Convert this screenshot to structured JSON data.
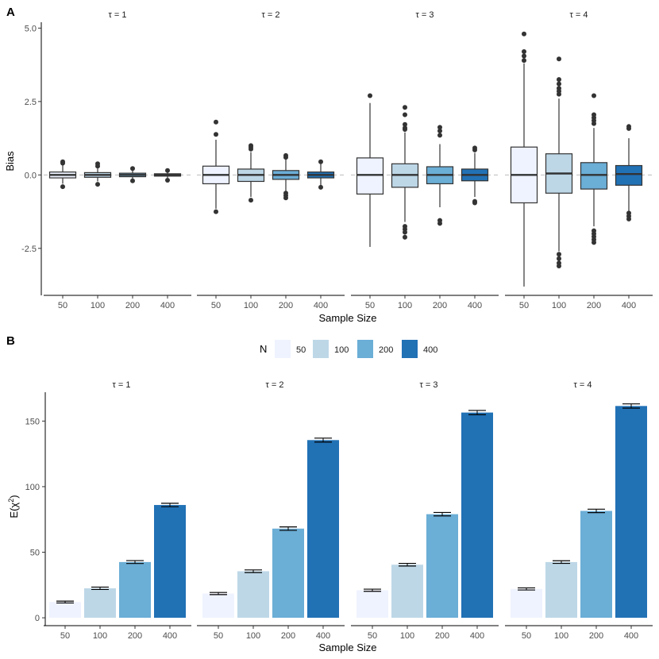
{
  "colors": {
    "n50": "#eff3ff",
    "n100": "#bdd7e7",
    "n200": "#6baed6",
    "n400": "#2171b5",
    "ink": "#333333",
    "axis": "#000000",
    "refline": "#bdbdbd"
  },
  "panel_a": {
    "label": "A",
    "xlabel": "Sample Size",
    "ylabel": "Bias",
    "facets": [
      "τ = 1",
      "τ = 2",
      "τ = 3",
      "τ = 4"
    ]
  },
  "panel_b": {
    "label": "B",
    "xlabel": "Sample Size",
    "ylabel_main": "E(χ",
    "ylabel_sup": "2",
    "ylabel_end": ")",
    "facets": [
      "τ = 1",
      "τ = 2",
      "τ = 3",
      "τ = 4"
    ]
  },
  "legend": {
    "title": "N",
    "items": [
      {
        "label": "50",
        "color": "#eff3ff"
      },
      {
        "label": "100",
        "color": "#bdd7e7"
      },
      {
        "label": "200",
        "color": "#6baed6"
      },
      {
        "label": "400",
        "color": "#2171b5"
      }
    ]
  },
  "chart_data": [
    {
      "type": "boxplot",
      "title": "A",
      "xlabel": "Sample Size",
      "ylabel": "Bias",
      "ylim": [
        -4.1,
        5.2
      ],
      "yticks": [
        5.0,
        2.5,
        0.0,
        -2.5
      ],
      "ytick_labels": [
        "5.0",
        "2.5",
        "0.0",
        "-2.5"
      ],
      "categories": [
        "50",
        "100",
        "200",
        "400"
      ],
      "reference_line": 0,
      "facets": [
        {
          "label": "τ = 1",
          "boxes": [
            {
              "n": "50",
              "q1": -0.1,
              "median": 0.0,
              "q3": 0.1,
              "lo": -0.3,
              "hi": 0.35,
              "outliers": [
                0.45,
                0.4,
                -0.4
              ]
            },
            {
              "n": "100",
              "q1": -0.08,
              "median": 0.0,
              "q3": 0.08,
              "lo": -0.22,
              "hi": 0.22,
              "outliers": [
                0.38,
                0.3,
                -0.32
              ]
            },
            {
              "n": "200",
              "q1": -0.06,
              "median": 0.0,
              "q3": 0.06,
              "lo": -0.15,
              "hi": 0.15,
              "outliers": [
                0.22,
                -0.2
              ]
            },
            {
              "n": "400",
              "q1": -0.04,
              "median": 0.0,
              "q3": 0.04,
              "lo": -0.1,
              "hi": 0.1,
              "outliers": [
                0.15,
                -0.18
              ]
            }
          ]
        },
        {
          "label": "τ = 2",
          "boxes": [
            {
              "n": "50",
              "q1": -0.3,
              "median": 0.0,
              "q3": 0.3,
              "lo": -1.15,
              "hi": 1.2,
              "outliers": [
                1.8,
                1.38,
                -1.25
              ]
            },
            {
              "n": "100",
              "q1": -0.22,
              "median": 0.0,
              "q3": 0.2,
              "lo": -0.75,
              "hi": 0.78,
              "outliers": [
                1.0,
                0.95,
                0.88,
                -0.86
              ]
            },
            {
              "n": "200",
              "q1": -0.15,
              "median": 0.0,
              "q3": 0.15,
              "lo": -0.55,
              "hi": 0.55,
              "outliers": [
                0.66,
                0.6,
                -0.62,
                -0.7,
                -0.78
              ]
            },
            {
              "n": "400",
              "q1": -0.1,
              "median": 0.0,
              "q3": 0.1,
              "lo": -0.35,
              "hi": 0.38,
              "outliers": [
                0.45,
                -0.42
              ]
            }
          ]
        },
        {
          "label": "τ = 3",
          "boxes": [
            {
              "n": "50",
              "q1": -0.65,
              "median": 0.0,
              "q3": 0.58,
              "lo": -2.45,
              "hi": 2.45,
              "outliers": [
                2.7
              ]
            },
            {
              "n": "100",
              "q1": -0.42,
              "median": 0.0,
              "q3": 0.38,
              "lo": -1.6,
              "hi": 1.45,
              "outliers": [
                2.3,
                2.05,
                1.72,
                1.6,
                1.55,
                -1.75,
                -1.85,
                -1.95,
                -2.12
              ]
            },
            {
              "n": "200",
              "q1": -0.3,
              "median": 0.0,
              "q3": 0.28,
              "lo": -1.1,
              "hi": 1.05,
              "outliers": [
                1.62,
                1.5,
                1.35,
                -1.55,
                -1.65
              ]
            },
            {
              "n": "400",
              "q1": -0.2,
              "median": 0.0,
              "q3": 0.2,
              "lo": -0.75,
              "hi": 0.75,
              "outliers": [
                0.92,
                0.85,
                -0.9,
                -0.95
              ]
            }
          ]
        },
        {
          "label": "τ = 4",
          "boxes": [
            {
              "n": "50",
              "q1": -0.95,
              "median": 0.0,
              "q3": 0.95,
              "lo": -3.8,
              "hi": 3.8,
              "outliers": [
                4.8,
                4.2,
                4.05,
                3.9
              ]
            },
            {
              "n": "100",
              "q1": -0.62,
              "median": 0.05,
              "q3": 0.72,
              "lo": -2.6,
              "hi": 2.6,
              "outliers": [
                3.95,
                3.25,
                3.1,
                2.95,
                2.85,
                2.75,
                -2.7,
                -2.85,
                -3.0,
                -3.1
              ]
            },
            {
              "n": "200",
              "q1": -0.48,
              "median": 0.0,
              "q3": 0.42,
              "lo": -1.75,
              "hi": 1.6,
              "outliers": [
                2.7,
                2.05,
                1.95,
                1.85,
                1.75,
                -1.9,
                -2.0,
                -2.1,
                -2.2,
                -2.3
              ]
            },
            {
              "n": "400",
              "q1": -0.35,
              "median": 0.03,
              "q3": 0.32,
              "lo": -1.25,
              "hi": 1.25,
              "outliers": [
                1.65,
                1.58,
                -1.3,
                -1.4,
                -1.5
              ]
            }
          ]
        }
      ]
    },
    {
      "type": "bar",
      "title": "B",
      "xlabel": "Sample Size",
      "ylabel": "E(χ²)",
      "ylim": [
        -6,
        172
      ],
      "yticks": [
        0,
        50,
        100,
        150
      ],
      "ytick_labels": [
        "0",
        "50",
        "100",
        "150"
      ],
      "categories": [
        "50",
        "100",
        "200",
        "400"
      ],
      "error_bars": true,
      "facets": [
        {
          "label": "τ = 1",
          "values": [
            12,
            22.5,
            42.5,
            86
          ],
          "errors": [
            0.7,
            0.9,
            1.1,
            1.3
          ]
        },
        {
          "label": "τ = 2",
          "values": [
            18.5,
            35.5,
            68,
            135.5
          ],
          "errors": [
            0.8,
            1.0,
            1.3,
            1.5
          ]
        },
        {
          "label": "τ = 3",
          "values": [
            21,
            40.5,
            79,
            156.5
          ],
          "errors": [
            0.8,
            1.0,
            1.3,
            1.6
          ]
        },
        {
          "label": "τ = 4",
          "values": [
            22,
            42.5,
            81.5,
            161.5
          ],
          "errors": [
            0.8,
            1.0,
            1.3,
            1.6
          ]
        }
      ]
    }
  ]
}
